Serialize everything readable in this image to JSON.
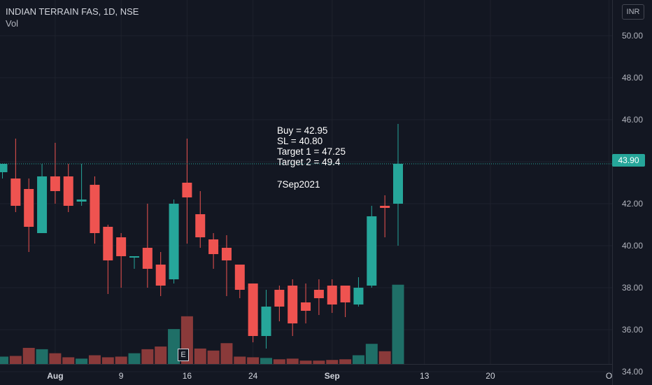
{
  "header": {
    "symbol_line": "INDIAN TERRAIN FAS, 1D, NSE",
    "volume_label": "Vol"
  },
  "currency_button": "INR",
  "annotation": {
    "buy": "Buy = 42.95",
    "sl": "SL = 40.80",
    "target1": "Target 1 = 47.25",
    "target2": "Target 2 = 49.4",
    "date": "7Sep2021"
  },
  "last_price_label": "43.90",
  "earnings_marker": "E",
  "colors": {
    "background": "#131722",
    "grid": "#1e222d",
    "up": "#26a69a",
    "down": "#ef5350",
    "up_volume": "#1f6f67",
    "down_volume": "#8a3a3a",
    "text": "#d1d4dc"
  },
  "chart_data": {
    "type": "candlestick",
    "title": "INDIAN TERRAIN FAS, 1D, NSE",
    "ylabel": "",
    "ylim": [
      33.8,
      50.8
    ],
    "yticks": [
      "50.00",
      "48.00",
      "46.00",
      "44.00",
      "42.00",
      "40.00",
      "38.00",
      "36.00",
      "34.00"
    ],
    "xticks": [
      {
        "label": "Aug",
        "bar": 4
      },
      {
        "label": "9",
        "bar": 9
      },
      {
        "label": "16",
        "bar": 14
      },
      {
        "label": "24",
        "bar": 19
      },
      {
        "label": "Sep",
        "bar": 25
      },
      {
        "label": "13",
        "bar": 32
      },
      {
        "label": "20",
        "bar": 37
      },
      {
        "label": "O",
        "bar": 46
      }
    ],
    "last_price": 43.9,
    "series": [
      {
        "date": "Jul 27",
        "open": 43.5,
        "high": 43.9,
        "low": 43.2,
        "close": 43.9,
        "volume": 1.1
      },
      {
        "date": "Jul 28",
        "open": 43.2,
        "high": 45.1,
        "low": 41.6,
        "close": 41.9,
        "volume": 1.2
      },
      {
        "date": "Jul 29",
        "open": 42.7,
        "high": 43.2,
        "low": 39.7,
        "close": 40.9,
        "volume": 2.4
      },
      {
        "date": "Jul 30",
        "open": 40.6,
        "high": 43.9,
        "low": 40.6,
        "close": 43.3,
        "volume": 2.2
      },
      {
        "date": "Aug 2",
        "open": 43.3,
        "high": 44.9,
        "low": 42.0,
        "close": 42.6,
        "volume": 1.6
      },
      {
        "date": "Aug 3",
        "open": 43.3,
        "high": 43.9,
        "low": 41.6,
        "close": 41.9,
        "volume": 1.0
      },
      {
        "date": "Aug 4",
        "open": 42.1,
        "high": 43.9,
        "low": 41.9,
        "close": 42.2,
        "volume": 0.8
      },
      {
        "date": "Aug 5",
        "open": 42.9,
        "high": 43.3,
        "low": 40.1,
        "close": 40.6,
        "volume": 1.3
      },
      {
        "date": "Aug 6",
        "open": 40.9,
        "high": 41.0,
        "low": 37.7,
        "close": 39.3,
        "volume": 1.0
      },
      {
        "date": "Aug 9",
        "open": 40.4,
        "high": 40.6,
        "low": 38.0,
        "close": 39.5,
        "volume": 1.1
      },
      {
        "date": "Aug 10",
        "open": 39.5,
        "high": 39.5,
        "low": 38.9,
        "close": 39.5,
        "volume": 1.6
      },
      {
        "date": "Aug 11",
        "open": 39.9,
        "high": 42.0,
        "low": 38.0,
        "close": 38.9,
        "volume": 2.2
      },
      {
        "date": "Aug 12",
        "open": 39.1,
        "high": 39.7,
        "low": 37.6,
        "close": 38.1,
        "volume": 2.6
      },
      {
        "date": "Aug 13",
        "open": 38.4,
        "high": 42.2,
        "low": 38.2,
        "close": 42.0,
        "volume": 5.2
      },
      {
        "date": "Aug 16",
        "open": 43.0,
        "high": 45.1,
        "low": 40.1,
        "close": 42.3,
        "volume": 7.1
      },
      {
        "date": "Aug 17",
        "open": 41.5,
        "high": 42.6,
        "low": 39.9,
        "close": 40.4,
        "volume": 2.3
      },
      {
        "date": "Aug 18",
        "open": 40.3,
        "high": 40.6,
        "low": 38.9,
        "close": 39.6,
        "volume": 2.0
      },
      {
        "date": "Aug 19",
        "open": 39.9,
        "high": 40.5,
        "low": 37.6,
        "close": 39.3,
        "volume": 3.1
      },
      {
        "date": "Aug 20",
        "open": 39.1,
        "high": 39.1,
        "low": 37.5,
        "close": 37.9,
        "volume": 1.1
      },
      {
        "date": "Aug 23",
        "open": 38.2,
        "high": 38.2,
        "low": 35.4,
        "close": 35.7,
        "volume": 1.0
      },
      {
        "date": "Aug 24",
        "open": 35.7,
        "high": 37.9,
        "low": 35.1,
        "close": 37.1,
        "volume": 0.9
      },
      {
        "date": "Aug 25",
        "open": 37.9,
        "high": 38.1,
        "low": 36.4,
        "close": 37.1,
        "volume": 0.7
      },
      {
        "date": "Aug 26",
        "open": 38.1,
        "high": 38.4,
        "low": 35.7,
        "close": 36.3,
        "volume": 0.8
      },
      {
        "date": "Aug 27",
        "open": 37.3,
        "high": 38.2,
        "low": 36.3,
        "close": 36.9,
        "volume": 0.5
      },
      {
        "date": "Aug 30",
        "open": 37.9,
        "high": 38.4,
        "low": 36.7,
        "close": 37.5,
        "volume": 0.5
      },
      {
        "date": "Aug 31",
        "open": 38.1,
        "high": 38.4,
        "low": 36.8,
        "close": 37.2,
        "volume": 0.6
      },
      {
        "date": "Sep 1",
        "open": 38.1,
        "high": 38.1,
        "low": 36.6,
        "close": 37.3,
        "volume": 0.7
      },
      {
        "date": "Sep 2",
        "open": 37.2,
        "high": 38.5,
        "low": 37.1,
        "close": 38.0,
        "volume": 1.3
      },
      {
        "date": "Sep 3",
        "open": 38.1,
        "high": 41.9,
        "low": 38.0,
        "close": 41.4,
        "volume": 3.0
      },
      {
        "date": "Sep 6",
        "open": 41.9,
        "high": 42.4,
        "low": 40.4,
        "close": 41.8,
        "volume": 1.9
      },
      {
        "date": "Sep 7",
        "open": 42.0,
        "high": 45.8,
        "low": 40.0,
        "close": 43.9,
        "volume": 11.8
      }
    ]
  }
}
